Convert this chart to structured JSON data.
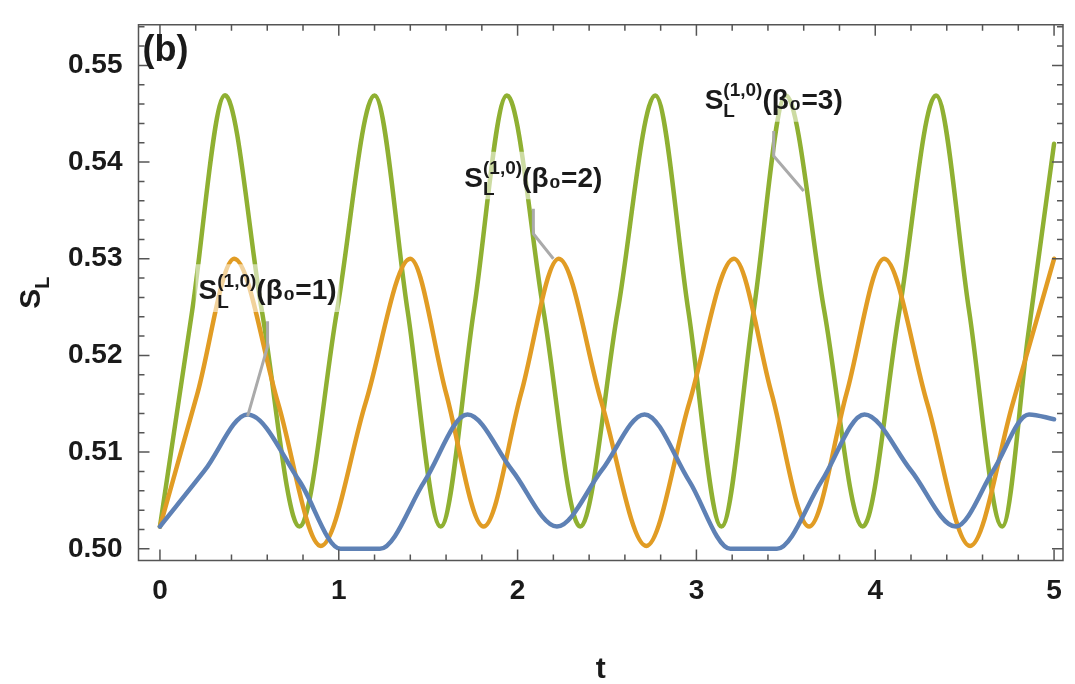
{
  "chart_data": {
    "type": "line",
    "title": "(b)",
    "xlabel": "t",
    "ylabel": "S$_{L}$",
    "xlim": [
      -0.12,
      5.05
    ],
    "ylim": [
      0.4988,
      0.5542
    ],
    "xticks": [
      0,
      {
        "value": 0.2,
        "label": null
      },
      {
        "value": 0.4,
        "label": null
      },
      {
        "value": 0.6,
        "label": null
      },
      {
        "value": 0.8,
        "label": null
      },
      1,
      {
        "value": 1.2,
        "label": null
      },
      {
        "value": 1.4,
        "label": null
      },
      {
        "value": 1.6,
        "label": null
      },
      {
        "value": 1.8,
        "label": null
      },
      2,
      {
        "value": 2.2,
        "label": null
      },
      {
        "value": 2.4,
        "label": null
      },
      {
        "value": 2.6,
        "label": null
      },
      {
        "value": 2.8,
        "label": null
      },
      3,
      {
        "value": 3.2,
        "label": null
      },
      {
        "value": 3.4,
        "label": null
      },
      {
        "value": 3.6,
        "label": null
      },
      {
        "value": 3.8,
        "label": null
      },
      4,
      {
        "value": 4.2,
        "label": null
      },
      {
        "value": 4.4,
        "label": null
      },
      {
        "value": 4.6,
        "label": null
      },
      {
        "value": 4.8,
        "label": null
      },
      5
    ],
    "yticks": [
      {
        "value": 0.5,
        "label": "0.50"
      },
      {
        "value": 0.502,
        "label": null
      },
      {
        "value": 0.504,
        "label": null
      },
      {
        "value": 0.506,
        "label": null
      },
      {
        "value": 0.508,
        "label": null
      },
      {
        "value": 0.51,
        "label": "0.51"
      },
      {
        "value": 0.512,
        "label": null
      },
      {
        "value": 0.514,
        "label": null
      },
      {
        "value": 0.516,
        "label": null
      },
      {
        "value": 0.518,
        "label": null
      },
      {
        "value": 0.52,
        "label": "0.52"
      },
      {
        "value": 0.522,
        "label": null
      },
      {
        "value": 0.524,
        "label": null
      },
      {
        "value": 0.526,
        "label": null
      },
      {
        "value": 0.528,
        "label": null
      },
      {
        "value": 0.53,
        "label": "0.53"
      },
      {
        "value": 0.532,
        "label": null
      },
      {
        "value": 0.534,
        "label": null
      },
      {
        "value": 0.536,
        "label": null
      },
      {
        "value": 0.538,
        "label": null
      },
      {
        "value": 0.54,
        "label": "0.54"
      },
      {
        "value": 0.542,
        "label": null
      },
      {
        "value": 0.544,
        "label": null
      },
      {
        "value": 0.546,
        "label": null
      },
      {
        "value": 0.548,
        "label": null
      },
      {
        "value": 0.55,
        "label": "0.55"
      },
      {
        "value": 0.552,
        "label": null
      },
      {
        "value": 0.554,
        "label": null
      }
    ],
    "grid": false,
    "legend": false,
    "marker": "none",
    "line_style": "solid",
    "series": [
      {
        "color": "#5e81b5",
        "x": [
          0,
          0.25,
          0.49,
          0.78,
          1.01,
          1.12,
          1.23,
          1.48,
          1.72,
          1.97,
          2.22,
          2.47,
          2.71,
          2.96,
          3.19,
          3.32,
          3.45,
          3.7,
          3.94,
          4.2,
          4.45,
          4.66,
          4.86,
          5.0
        ],
        "values": [
          0.5023,
          0.5081,
          0.5139,
          0.507,
          0.5,
          0.5,
          0.5,
          0.507,
          0.5139,
          0.5081,
          0.5023,
          0.5081,
          0.5139,
          0.507,
          0.5,
          0.5,
          0.5,
          0.507,
          0.5139,
          0.5081,
          0.5023,
          0.5081,
          0.5139,
          0.5134
        ]
      },
      {
        "color": "#e19c24",
        "x": [
          0,
          0.21,
          0.415,
          0.66,
          0.9,
          1.15,
          1.4,
          1.6,
          1.81,
          2.02,
          2.23,
          2.47,
          2.72,
          2.96,
          3.21,
          3.42,
          3.63,
          3.84,
          4.05,
          4.29,
          4.53,
          4.77,
          5.0
        ],
        "values": [
          0.5023,
          0.5161,
          0.53,
          0.5151,
          0.5003,
          0.5151,
          0.53,
          0.5161,
          0.5023,
          0.5161,
          0.53,
          0.5151,
          0.5003,
          0.5151,
          0.53,
          0.5161,
          0.5023,
          0.5161,
          0.53,
          0.5151,
          0.5003,
          0.5151,
          0.53
        ]
      },
      {
        "color": "#8fb032",
        "x": [
          0,
          0.18,
          0.364,
          0.57,
          0.78,
          0.99,
          1.2,
          1.385,
          1.57,
          1.755,
          1.94,
          2.145,
          2.35,
          2.56,
          2.77,
          2.955,
          3.14,
          3.32,
          3.5,
          3.715,
          3.93,
          4.135,
          4.34,
          4.525,
          4.71,
          4.855,
          5.0
        ],
        "values": [
          0.5023,
          0.5246,
          0.5469,
          0.5246,
          0.5023,
          0.5246,
          0.5469,
          0.5246,
          0.5023,
          0.5246,
          0.5469,
          0.5246,
          0.5023,
          0.5246,
          0.5469,
          0.5246,
          0.5023,
          0.5246,
          0.5469,
          0.5246,
          0.5023,
          0.5246,
          0.5469,
          0.5246,
          0.5023,
          0.5221,
          0.5419
        ]
      }
    ],
    "annotations": [
      {
        "text": "S$_{L}$$^{(1,0)}$(β₀=1)",
        "x": 0.49,
        "y": 0.5137
      },
      {
        "text": "S$_{L}$$^{(1,0)}$(β₀=2)",
        "x": 2.2,
        "y": 0.53
      },
      {
        "text": "S$_{L}$$^{(1,0)}$(β₀=3)",
        "x": 3.6,
        "y": 0.537
      }
    ]
  }
}
